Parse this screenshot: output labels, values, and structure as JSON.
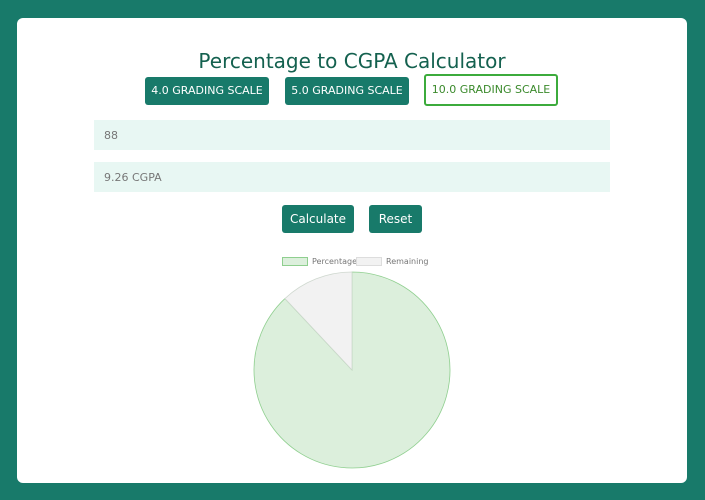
{
  "header": {
    "title": "Percentage to CGPA Calculator"
  },
  "scales": [
    {
      "label": "4.0 GRADING SCALE",
      "active": false
    },
    {
      "label": "5.0 GRADING SCALE",
      "active": false
    },
    {
      "label": "10.0 GRADING SCALE",
      "active": true
    }
  ],
  "inputs": {
    "percentage_value": "88",
    "result_value": "9.26 CGPA"
  },
  "actions": {
    "calculate_label": "Calculate",
    "reset_label": "Reset"
  },
  "colors": {
    "brand": "#187a6a",
    "active_outline": "#3cab3c",
    "pie_percentage": "#dcefdc",
    "pie_remaining": "#f2f2f2"
  },
  "chart_data": {
    "type": "pie",
    "categories": [
      "Percentage",
      "Remaining"
    ],
    "values": [
      88,
      12
    ],
    "legend_position": "top",
    "title": ""
  }
}
